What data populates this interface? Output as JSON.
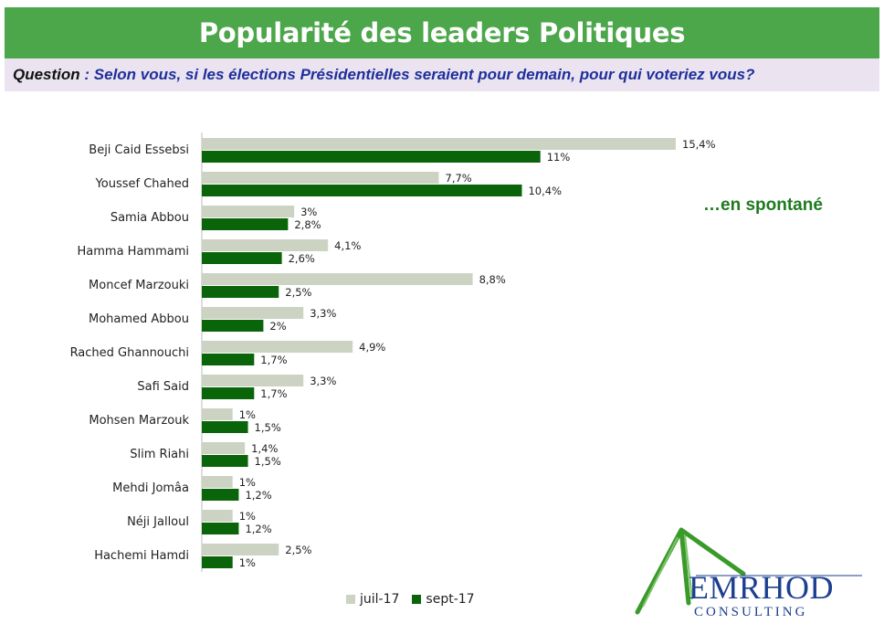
{
  "header": {
    "title": "Popularité des leaders Politiques"
  },
  "question": {
    "label": "Question",
    "separator": " : ",
    "text": "Selon vous, si les élections Présidentielles seraient pour demain, pour qui voteriez vous?"
  },
  "annotation": "…en spontané",
  "logo": {
    "name": "EMRHOD",
    "subtitle": "CONSULTING"
  },
  "colors": {
    "title_bg": "#4ca64a",
    "question_bg": "#ebe4f0",
    "juil": "#ccd3c3",
    "sept": "#0a640a",
    "annotation": "#1e7a1e",
    "logo_blue": "#1c3f8f",
    "logo_green": "#3a9a2a"
  },
  "chart_data": {
    "type": "bar",
    "orientation": "horizontal",
    "categories": [
      "Beji Caid Essebsi",
      "Youssef Chahed",
      "Samia Abbou",
      "Hamma Hammami",
      "Moncef Marzouki",
      "Mohamed Abbou",
      "Rached Ghannouchi",
      "Safi Said",
      "Mohsen Marzouk",
      "Slim Riahi",
      "Mehdi Jomâa",
      "Néji Jalloul",
      "Hachemi Hamdi"
    ],
    "series": [
      {
        "name": "juil-17",
        "values": [
          15.4,
          7.7,
          3,
          4.1,
          8.8,
          3.3,
          4.9,
          3.3,
          1,
          1.4,
          1,
          1,
          2.5
        ],
        "labels": [
          "15,4%",
          "7,7%",
          "3%",
          "4,1%",
          "8,8%",
          "3,3%",
          "4,9%",
          "3,3%",
          "1%",
          "1,4%",
          "1%",
          "1%",
          "2,5%"
        ]
      },
      {
        "name": "sept-17",
        "values": [
          11,
          10.4,
          2.8,
          2.6,
          2.5,
          2,
          1.7,
          1.7,
          1.5,
          1.5,
          1.2,
          1.2,
          1
        ],
        "labels": [
          "11%",
          "10,4%",
          "2,8%",
          "2,6%",
          "2,5%",
          "2%",
          "1,7%",
          "1,7%",
          "1,5%",
          "1,5%",
          "1,2%",
          "1,2%",
          "1%"
        ]
      }
    ],
    "xlim": [
      0,
      15.4
    ],
    "grid": false,
    "legend_position": "bottom"
  }
}
